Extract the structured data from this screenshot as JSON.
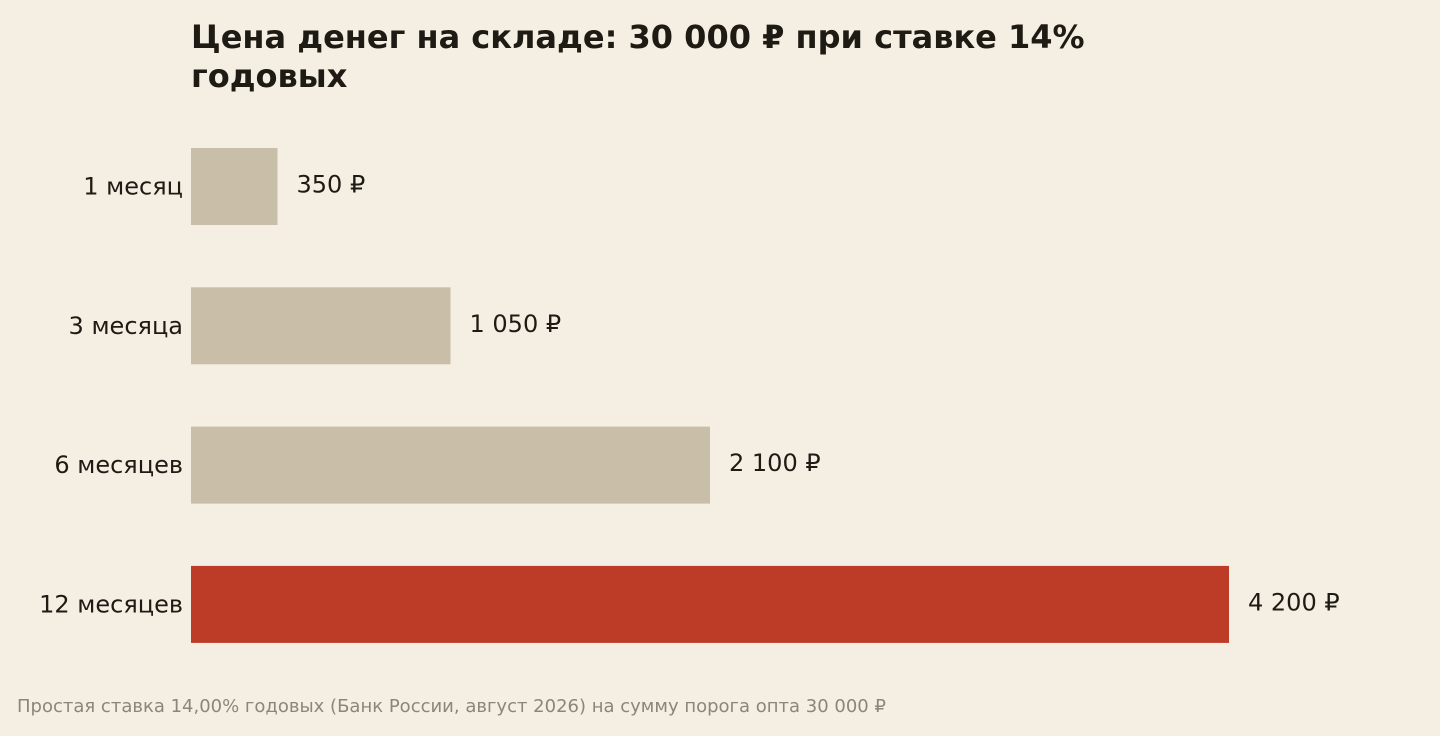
{
  "chart_data": {
    "type": "bar",
    "orientation": "horizontal",
    "title": "Цена денег на складе: 30 000 ₽ при ставке 14% годовых",
    "categories": [
      "1 месяц",
      "3 месяца",
      "6 месяцев",
      "12 месяцев"
    ],
    "values": [
      350,
      1050,
      2100,
      4200
    ],
    "value_labels": [
      "350 ₽",
      "1 050 ₽",
      "2 100 ₽",
      "4 200 ₽"
    ],
    "unit": "₽",
    "xlim": [
      0,
      4200
    ],
    "grid": false,
    "legend": "none",
    "highlight_index": 3,
    "colors": {
      "bar": "#c9bfa8",
      "highlight": "#bc3c27",
      "background": "#f5efe3",
      "text": "#1e1a14",
      "footnote": "#8c857a"
    },
    "footnote": "Простая ставка 14,00% годовых (Банк России, август 2026) на сумму порога опта 30 000 ₽"
  }
}
